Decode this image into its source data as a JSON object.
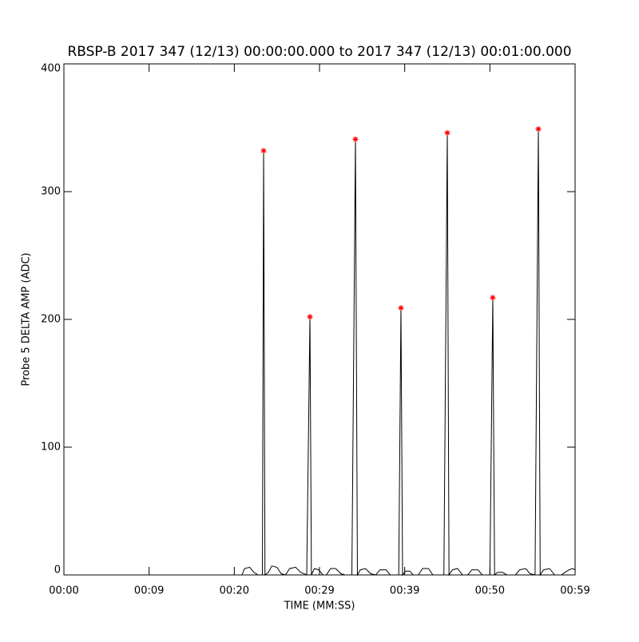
{
  "chart_data": {
    "type": "line",
    "title": "RBSP-B 2017 347 (12/13) 00:00:00.000 to 2017 347 (12/13) 00:01:00.000",
    "x_label": "TIME (MM:SS)",
    "y_label": "Probe 5 DELTA AMP (ADC)",
    "xlim": [
      0,
      60
    ],
    "xticks": [
      {
        "value": 0,
        "label": "00:00"
      },
      {
        "value": 10,
        "label": "00:09"
      },
      {
        "value": 20,
        "label": "00:20"
      },
      {
        "value": 30,
        "label": "00:29"
      },
      {
        "value": 40,
        "label": "00:39"
      },
      {
        "value": 50,
        "label": "00:50"
      },
      {
        "value": 60,
        "label": "00:59"
      }
    ],
    "ylim": [
      0,
      400
    ],
    "yticks": [
      0,
      100,
      200,
      300,
      400
    ],
    "grid": false,
    "series": [
      {
        "color": "#000000",
        "style": "line",
        "x": [
          0,
          20.9,
          21.2,
          21.8,
          22.3,
          22.8,
          23.3,
          23.44,
          23.6,
          24.0,
          24.4,
          25.0,
          25.5,
          26.0,
          26.5,
          27.2,
          27.8,
          28.5,
          28.88,
          29.05,
          29.4,
          29.9,
          30.4,
          30.8,
          31.3,
          31.9,
          32.5,
          33.0,
          33.8,
          34.22,
          34.45,
          34.8,
          35.4,
          36.0,
          36.6,
          37.1,
          37.8,
          38.3,
          39.3,
          39.56,
          39.75,
          40.1,
          40.6,
          41.0,
          41.6,
          42.1,
          42.8,
          43.3,
          44.6,
          45.0,
          45.2,
          45.6,
          46.2,
          46.8,
          47.4,
          47.9,
          48.6,
          49.1,
          50.0,
          50.34,
          50.55,
          50.9,
          51.5,
          52.0,
          53.0,
          53.5,
          54.2,
          54.7,
          55.3,
          55.69,
          55.9,
          56.3,
          57.0,
          57.6,
          58.4,
          58.8,
          59.3,
          59.7,
          60
        ],
        "values": [
          0,
          0,
          5,
          6,
          2,
          0,
          0,
          332,
          0,
          2,
          7,
          6,
          1,
          0,
          5,
          6,
          2,
          0,
          202,
          0,
          5,
          4,
          0,
          0,
          5,
          5,
          1,
          0,
          0,
          341,
          0,
          4,
          5,
          1,
          0,
          4,
          4,
          0,
          0,
          209,
          0,
          3,
          3,
          0,
          0,
          5,
          5,
          0,
          0,
          346,
          0,
          4,
          5,
          0,
          0,
          4,
          4,
          0,
          0,
          217,
          0,
          2,
          2,
          0,
          0,
          4,
          5,
          1,
          0,
          349,
          0,
          4,
          5,
          0,
          0,
          2,
          4,
          5,
          4
        ]
      },
      {
        "color": "#ff0000",
        "style": "asterisk",
        "x": [
          23.44,
          28.88,
          34.22,
          39.56,
          45.0,
          50.34,
          55.69
        ],
        "values": [
          332,
          202,
          341,
          209,
          346,
          217,
          349
        ]
      }
    ]
  }
}
